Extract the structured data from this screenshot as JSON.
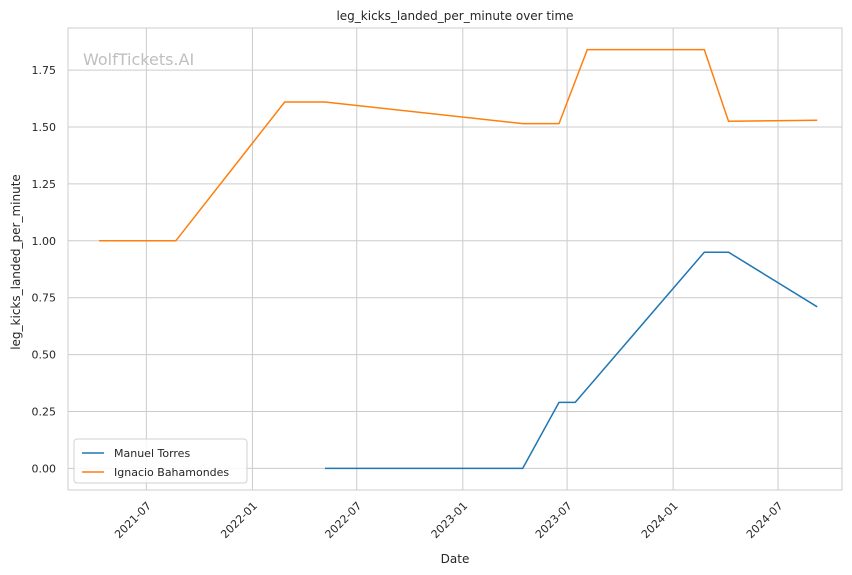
{
  "chart_data": {
    "type": "line",
    "title": "leg_kicks_landed_per_minute over time",
    "xlabel": "Date",
    "ylabel": "leg_kicks_landed_per_minute",
    "watermark": "WolfTickets.AI",
    "xlim": [
      "2021-02-15",
      "2024-10-20"
    ],
    "ylim": [
      -0.095,
      1.935
    ],
    "x_ticks": [
      "2021-07",
      "2022-01",
      "2022-07",
      "2023-01",
      "2023-07",
      "2024-01",
      "2024-07"
    ],
    "y_ticks": [
      "0.00",
      "0.25",
      "0.50",
      "0.75",
      "1.00",
      "1.25",
      "1.50",
      "1.75"
    ],
    "grid": true,
    "legend_position": "lower-left",
    "series": [
      {
        "name": "Manuel Torres",
        "color": "#1f77b4",
        "points": [
          {
            "x": "2022-05-07",
            "y": 0.0
          },
          {
            "x": "2023-04-15",
            "y": 0.0
          },
          {
            "x": "2023-06-17",
            "y": 0.29
          },
          {
            "x": "2023-07-15",
            "y": 0.29
          },
          {
            "x": "2024-02-24",
            "y": 0.95
          },
          {
            "x": "2024-04-06",
            "y": 0.95
          },
          {
            "x": "2024-09-07",
            "y": 0.71
          }
        ]
      },
      {
        "name": "Ignacio Bahamondes",
        "color": "#ff7f0e",
        "points": [
          {
            "x": "2021-04-10",
            "y": 1.0
          },
          {
            "x": "2021-08-21",
            "y": 1.0
          },
          {
            "x": "2022-02-26",
            "y": 1.61
          },
          {
            "x": "2022-05-07",
            "y": 1.61
          },
          {
            "x": "2023-04-15",
            "y": 1.515
          },
          {
            "x": "2023-06-17",
            "y": 1.515
          },
          {
            "x": "2023-08-05",
            "y": 1.84
          },
          {
            "x": "2024-02-24",
            "y": 1.84
          },
          {
            "x": "2024-04-06",
            "y": 1.525
          },
          {
            "x": "2024-09-07",
            "y": 1.53
          }
        ]
      }
    ]
  }
}
